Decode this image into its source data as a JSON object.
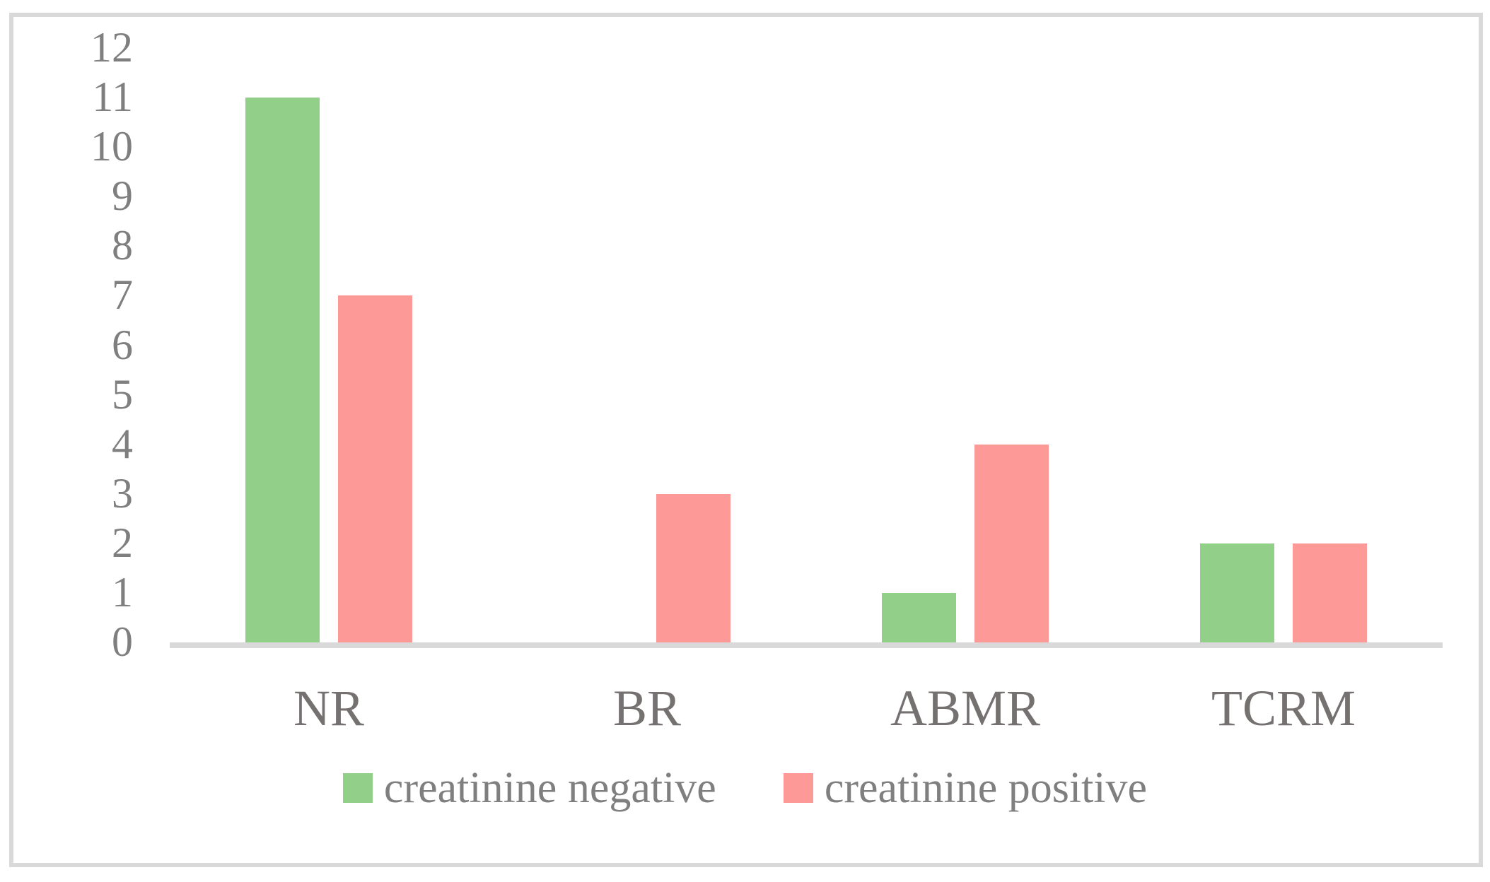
{
  "chart_data": {
    "type": "bar",
    "title": "",
    "xlabel": "",
    "ylabel": "",
    "categories": [
      "NR",
      "BR",
      "ABMR",
      "TCRM"
    ],
    "series": [
      {
        "name": "creatinine negative",
        "color": "#92D08A",
        "values": [
          11,
          0,
          1,
          2
        ]
      },
      {
        "name": "creatinine positive",
        "color": "#FD9A97",
        "values": [
          7,
          3,
          4,
          2
        ]
      }
    ],
    "ylim": [
      0,
      12
    ],
    "ytick_step": 1,
    "grid": false,
    "legend_position": "bottom"
  },
  "colors": {
    "background": "#FFFFFF",
    "frame_border": "#D9D9D9",
    "axis_line": "#D9D9D9",
    "tick_label": "#7F7F7F",
    "category_label": "#767171",
    "legend_label": "#7F7F7F"
  }
}
